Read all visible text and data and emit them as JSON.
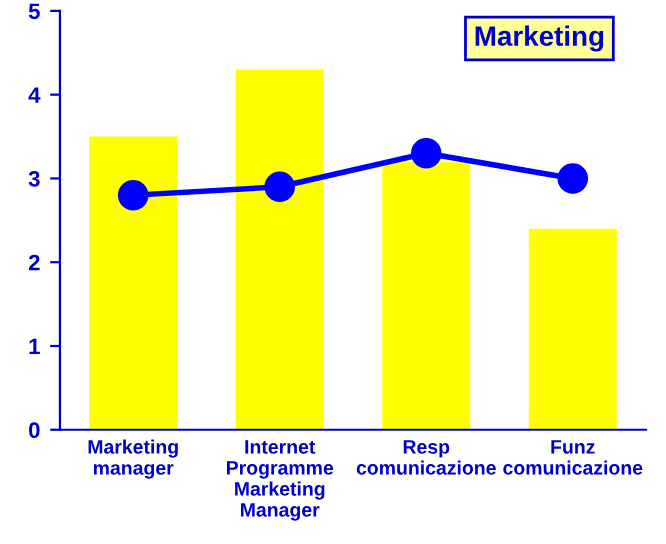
{
  "chart_data": {
    "type": "bar",
    "title": "Marketing",
    "categories": [
      "Marketing\nmanager",
      "Internet\nProgramme\nMarketing\nManager",
      "Resp\ncomunicazione",
      "Funz\ncomunicazione"
    ],
    "series": [
      {
        "color": "#ffff00",
        "values": [
          3.5,
          4.3,
          3.2,
          2.4
        ]
      },
      {
        "type": "line",
        "color": "#0000ff",
        "values": [
          2.8,
          2.9,
          3.3,
          3.0
        ]
      }
    ],
    "ylim": [
      0,
      5
    ],
    "yticks": [
      0,
      1,
      2,
      3,
      4,
      5
    ],
    "grid": false,
    "legend": false,
    "marker": "circle",
    "line_style": "solid"
  }
}
